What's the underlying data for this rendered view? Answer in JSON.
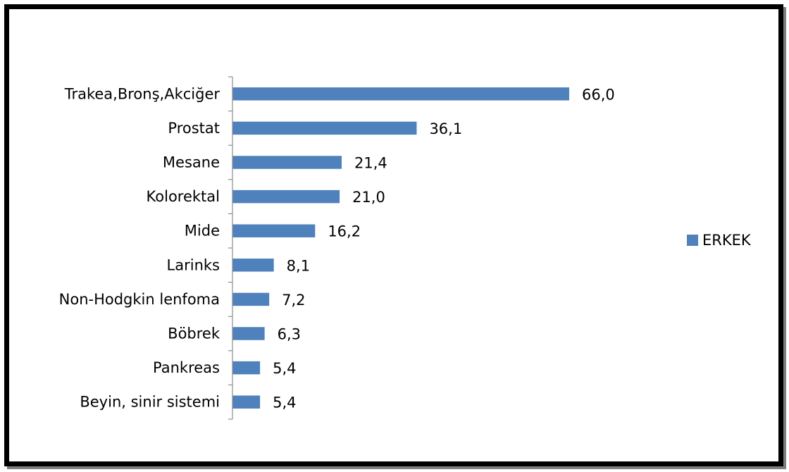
{
  "chart_data": {
    "type": "bar",
    "orientation": "horizontal",
    "categories": [
      "Trakea,Bronş,Akciğer",
      "Prostat",
      "Mesane",
      "Kolorektal",
      "Mide",
      "Larinks",
      "Non-Hodgkin lenfoma",
      "Böbrek",
      "Pankreas",
      "Beyin, sinir sistemi"
    ],
    "series": [
      {
        "name": "ERKEK",
        "values": [
          66.0,
          36.1,
          21.4,
          21.0,
          16.2,
          8.1,
          7.2,
          6.3,
          5.4,
          5.4
        ],
        "labels": [
          "66,0",
          "36,1",
          "21,4",
          "21,0",
          "16,2",
          "8,1",
          "7,2",
          "6,3",
          "5,4",
          "5,4"
        ]
      }
    ],
    "xlim": [
      0,
      70
    ],
    "grid": false,
    "legend_position": "right",
    "colors": {
      "bar": "#4F81BD",
      "axis": "#8C8C8C",
      "frame": "#000000"
    }
  }
}
